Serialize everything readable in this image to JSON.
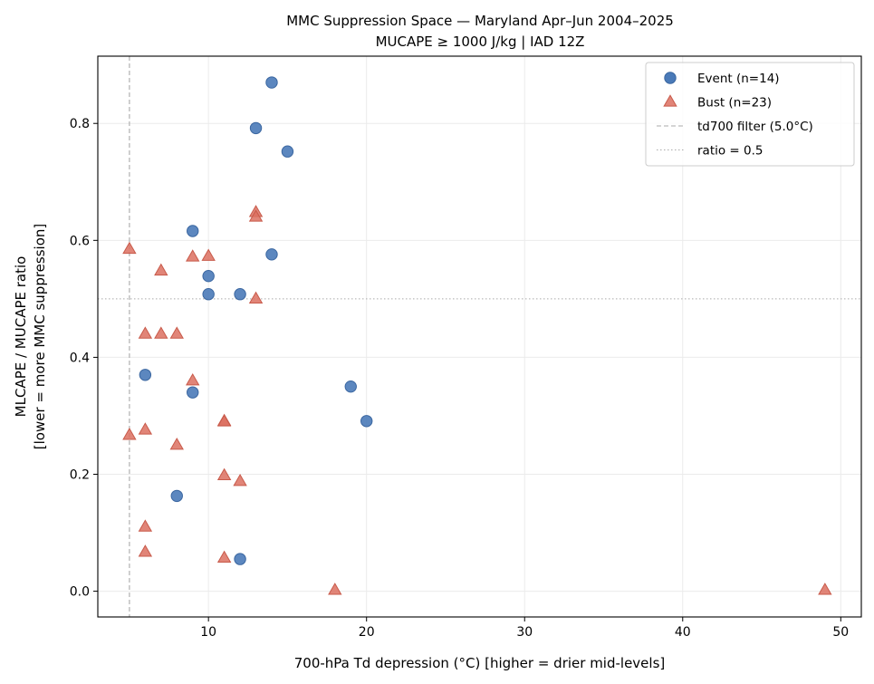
{
  "chart_data": {
    "type": "scatter",
    "title": "MMC Suppression Space — Maryland Apr–Jun 2004–2025",
    "subtitle": "MUCAPE ≥ 1000 J/kg  |  IAD 12Z",
    "xlabel": "700-hPa Td depression (°C)  [higher = drier mid-levels]",
    "ylabel": "MLCAPE / MUCAPE ratio",
    "ylabel2": "[lower = more MMC suppression]",
    "xlim": [
      3,
      51.3
    ],
    "ylim": [
      -0.044,
      0.915
    ],
    "xticks": [
      10,
      20,
      30,
      40,
      50
    ],
    "yticks": [
      0.0,
      0.2,
      0.4,
      0.6,
      0.8
    ],
    "grid": true,
    "legend_position": "top-right",
    "series": [
      {
        "name": "Event (n=14)",
        "marker": "circle",
        "color": "#4a7ab8",
        "points": [
          {
            "x": 14,
            "y": 0.87
          },
          {
            "x": 13,
            "y": 0.792
          },
          {
            "x": 15,
            "y": 0.752
          },
          {
            "x": 9,
            "y": 0.616
          },
          {
            "x": 14,
            "y": 0.576
          },
          {
            "x": 10,
            "y": 0.539
          },
          {
            "x": 10,
            "y": 0.508
          },
          {
            "x": 12,
            "y": 0.508
          },
          {
            "x": 6,
            "y": 0.37
          },
          {
            "x": 19,
            "y": 0.35
          },
          {
            "x": 9,
            "y": 0.34
          },
          {
            "x": 20,
            "y": 0.291
          },
          {
            "x": 8,
            "y": 0.163
          },
          {
            "x": 12,
            "y": 0.055
          }
        ]
      },
      {
        "name": "Bust (n=23)",
        "marker": "triangle",
        "color": "#dc7060",
        "points": [
          {
            "x": 13,
            "y": 0.648
          },
          {
            "x": 13,
            "y": 0.64
          },
          {
            "x": 5,
            "y": 0.585
          },
          {
            "x": 9,
            "y": 0.572
          },
          {
            "x": 10,
            "y": 0.573
          },
          {
            "x": 7,
            "y": 0.548
          },
          {
            "x": 13,
            "y": 0.5
          },
          {
            "x": 6,
            "y": 0.44
          },
          {
            "x": 7,
            "y": 0.44
          },
          {
            "x": 8,
            "y": 0.44
          },
          {
            "x": 9,
            "y": 0.36
          },
          {
            "x": 11,
            "y": 0.291
          },
          {
            "x": 11,
            "y": 0.29
          },
          {
            "x": 6,
            "y": 0.276
          },
          {
            "x": 5,
            "y": 0.267
          },
          {
            "x": 8,
            "y": 0.25
          },
          {
            "x": 11,
            "y": 0.198
          },
          {
            "x": 12,
            "y": 0.188
          },
          {
            "x": 6,
            "y": 0.11
          },
          {
            "x": 6,
            "y": 0.067
          },
          {
            "x": 11,
            "y": 0.057
          },
          {
            "x": 18,
            "y": 0.002
          },
          {
            "x": 49,
            "y": 0.002
          }
        ]
      }
    ],
    "reference_lines": [
      {
        "name": "td700 filter (5.0°C)",
        "orientation": "vertical",
        "value": 5.0,
        "style": "dashed",
        "color": "#aaaaaa"
      },
      {
        "name": "ratio = 0.5",
        "orientation": "horizontal",
        "value": 0.5,
        "style": "dotted",
        "color": "#aaaaaa"
      }
    ]
  }
}
